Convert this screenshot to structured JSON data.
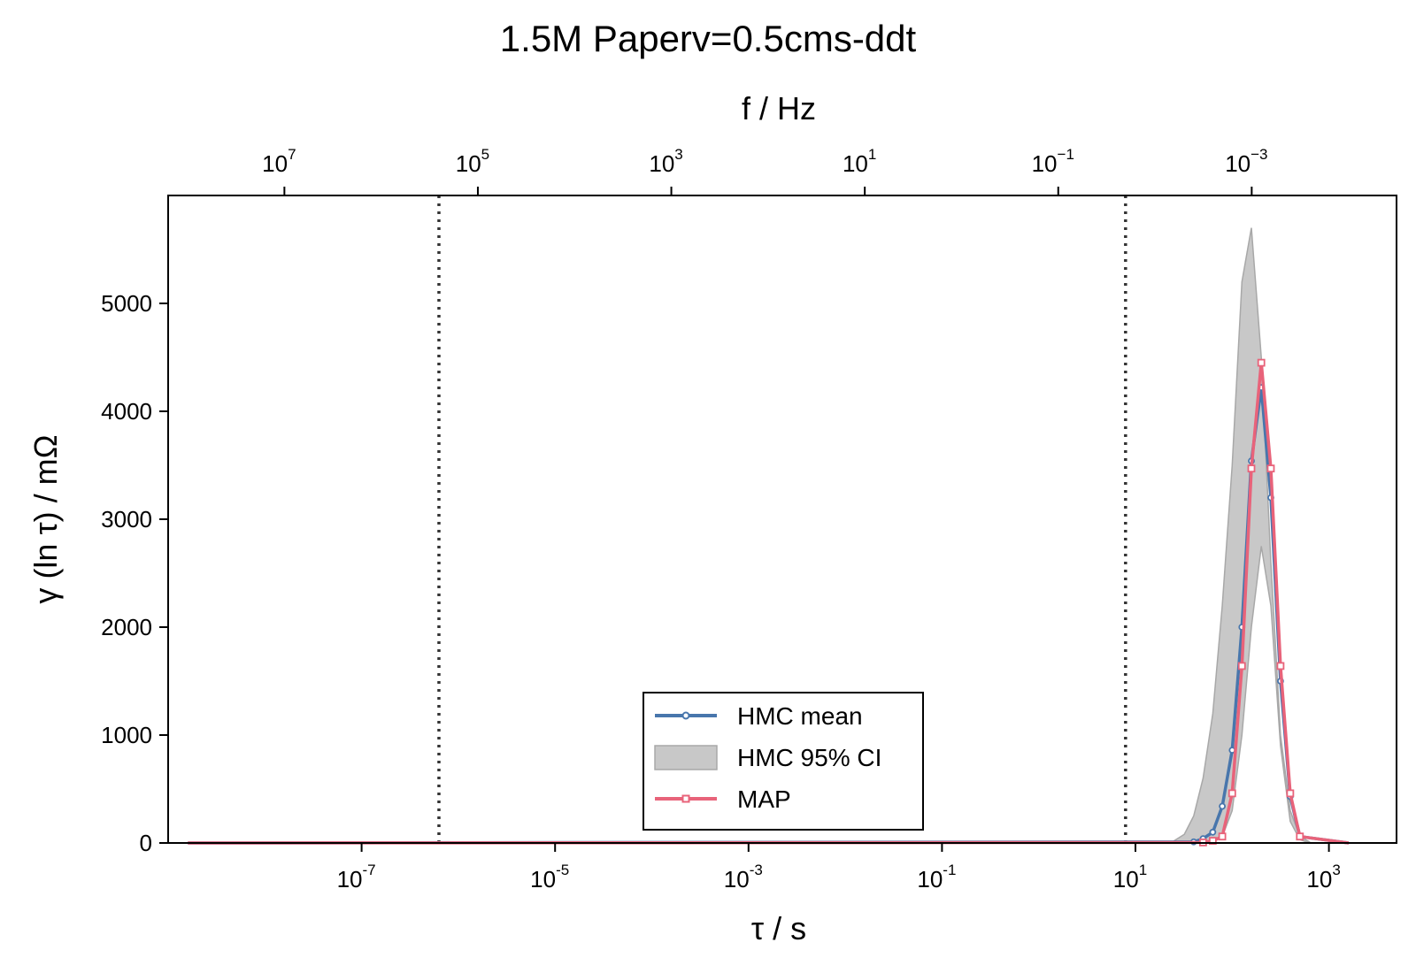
{
  "chart_data": {
    "type": "line",
    "title": "1.5M Paperv=0.5cms-ddt",
    "xlabel": "τ / s",
    "x2label": "f / Hz",
    "ylabel": "γ (ln τ) / mΩ",
    "xscale": "log",
    "x2scale": "log",
    "xlim": [
      1e-09,
      5000
    ],
    "ylim": [
      0,
      6000
    ],
    "x_ticks": [
      "-7",
      "-5",
      "-3",
      "-1",
      "1",
      "3"
    ],
    "x2_ticks": [
      "7",
      "5",
      "3",
      "1",
      "−1",
      "−3"
    ],
    "y_ticks": [
      "0",
      "1000",
      "2000",
      "3000",
      "4000",
      "5000"
    ],
    "vlines": [
      6.3e-07,
      7.9
    ],
    "tau_range": [
      1.6e-09,
      1600
    ],
    "legend_position": "lower-center",
    "legend": [
      "HMC mean",
      "HMC 95% CI",
      "MAP"
    ],
    "colors": {
      "hmc_mean": "#4876ac",
      "ci": "#c8c8c8",
      "map": "#e8637a"
    },
    "series": [
      {
        "name": "HMC mean",
        "x": [
          40,
          50,
          63,
          79,
          100,
          126,
          158,
          200,
          251,
          316,
          398,
          501
        ],
        "values": [
          10,
          40,
          100,
          340,
          860,
          2000,
          3540,
          4220,
          3200,
          1500,
          430,
          60
        ]
      },
      {
        "name": "MAP",
        "x": [
          50,
          63,
          79,
          100,
          126,
          158,
          200,
          251,
          316,
          398,
          501
        ],
        "values": [
          5,
          20,
          60,
          460,
          1640,
          3470,
          4450,
          3470,
          1640,
          460,
          60
        ]
      }
    ],
    "ci_band": {
      "name": "HMC 95% CI",
      "x": [
        25,
        32,
        40,
        50,
        63,
        79,
        100,
        126,
        158,
        200,
        251,
        316,
        398,
        501,
        631
      ],
      "upper": [
        20,
        80,
        250,
        600,
        1200,
        2200,
        3500,
        5200,
        5700,
        4500,
        2600,
        1000,
        300,
        60,
        10
      ],
      "lower": [
        0,
        0,
        0,
        0,
        10,
        60,
        300,
        1000,
        2000,
        2750,
        2200,
        900,
        200,
        30,
        0
      ]
    }
  }
}
